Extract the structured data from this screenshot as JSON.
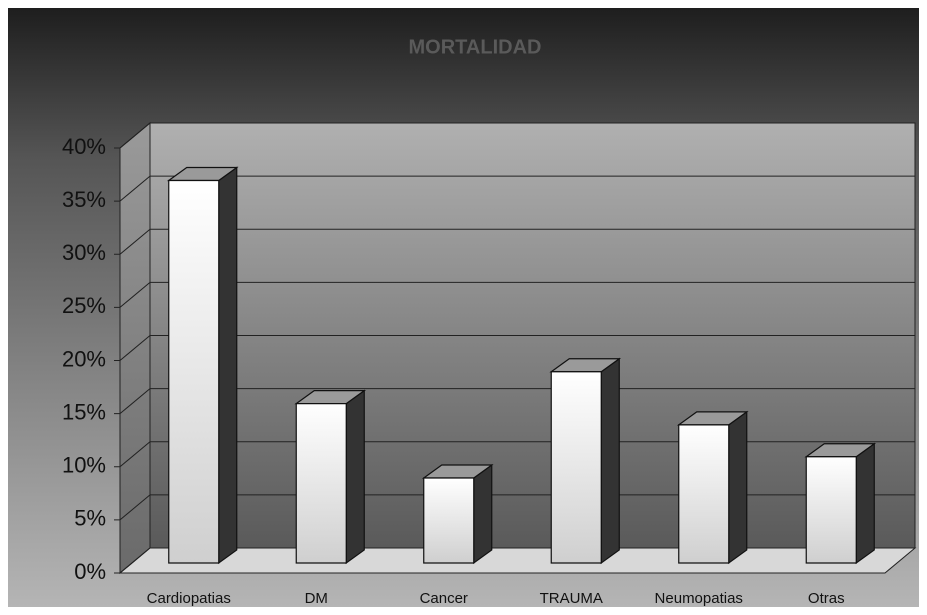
{
  "chart_data": {
    "type": "bar3d",
    "title": "MORTALIDAD",
    "categories": [
      "Cardiopatias",
      "DM",
      "Cancer",
      "TRAUMA",
      "Neumopatias",
      "Otras"
    ],
    "values": [
      36,
      15,
      8,
      18,
      13,
      10
    ],
    "ylim": [
      0,
      40
    ],
    "yticks": [
      {
        "value": 0,
        "label": "0%"
      },
      {
        "value": 5,
        "label": "5%"
      },
      {
        "value": 10,
        "label": "10%"
      },
      {
        "value": 15,
        "label": "15%"
      },
      {
        "value": 20,
        "label": "20%"
      },
      {
        "value": 25,
        "label": "25%"
      },
      {
        "value": 30,
        "label": "30%"
      },
      {
        "value": 35,
        "label": "35%"
      },
      {
        "value": 40,
        "label": "40%"
      }
    ],
    "grid": true
  }
}
